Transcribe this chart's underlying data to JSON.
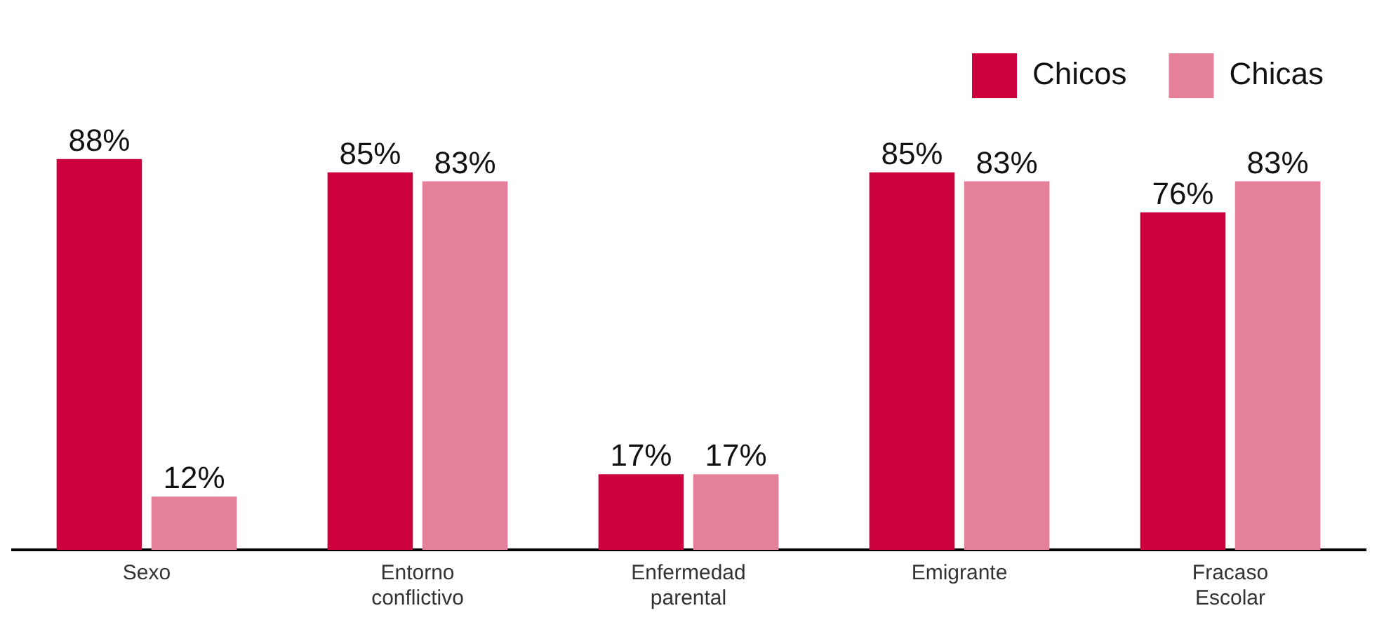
{
  "chart_data": {
    "type": "bar",
    "categories": [
      "Sexo",
      "Entorno conflictivo",
      "Enfermedad parental",
      "Emigrante",
      "Fracaso Escolar"
    ],
    "legend": "top right",
    "series": [
      {
        "name": "Chicos",
        "color": "#cc003d",
        "values": [
          88,
          85,
          17,
          85,
          76
        ],
        "value_labels": [
          "88%",
          "85%",
          "17%",
          "85%",
          "76%"
        ]
      },
      {
        "name": "Chicas",
        "color": "#e5809b",
        "values": [
          12,
          83,
          17,
          83,
          83
        ],
        "value_labels": [
          "12%",
          "83%",
          "17%",
          "83%",
          "83%"
        ]
      }
    ]
  }
}
